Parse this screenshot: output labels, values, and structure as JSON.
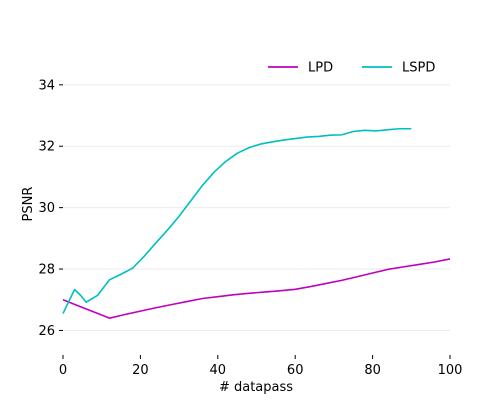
{
  "chart_data": {
    "type": "line",
    "title": "",
    "xlabel": "# datapass",
    "ylabel": "PSNR",
    "xlim": [
      0,
      100
    ],
    "ylim": [
      25.2,
      35.2
    ],
    "xticks": [
      0,
      20,
      40,
      60,
      80,
      100
    ],
    "yticks": [
      26,
      28,
      30,
      32,
      34
    ],
    "grid": "horizontal",
    "legend_position": "top-right",
    "series": [
      {
        "name": "LPD",
        "color": "#bf00bf",
        "points": [
          [
            0,
            27.0
          ],
          [
            3,
            26.85
          ],
          [
            6,
            26.7
          ],
          [
            9,
            26.55
          ],
          [
            12,
            26.4
          ],
          [
            16,
            26.52
          ],
          [
            20,
            26.63
          ],
          [
            24,
            26.74
          ],
          [
            28,
            26.84
          ],
          [
            32,
            26.94
          ],
          [
            36,
            27.04
          ],
          [
            40,
            27.1
          ],
          [
            44,
            27.16
          ],
          [
            48,
            27.21
          ],
          [
            52,
            27.25
          ],
          [
            56,
            27.29
          ],
          [
            60,
            27.34
          ],
          [
            64,
            27.43
          ],
          [
            68,
            27.53
          ],
          [
            72,
            27.63
          ],
          [
            76,
            27.75
          ],
          [
            80,
            27.87
          ],
          [
            84,
            27.99
          ],
          [
            88,
            28.07
          ],
          [
            92,
            28.15
          ],
          [
            96,
            28.23
          ],
          [
            100,
            28.33
          ]
        ]
      },
      {
        "name": "LSPD",
        "color": "#00bfbf",
        "points": [
          [
            0,
            26.55
          ],
          [
            1.5,
            26.95
          ],
          [
            3,
            27.33
          ],
          [
            4.5,
            27.15
          ],
          [
            6,
            26.92
          ],
          [
            9,
            27.15
          ],
          [
            12,
            27.65
          ],
          [
            15,
            27.83
          ],
          [
            18,
            28.03
          ],
          [
            21,
            28.42
          ],
          [
            24,
            28.85
          ],
          [
            27,
            29.27
          ],
          [
            30,
            29.72
          ],
          [
            33,
            30.22
          ],
          [
            36,
            30.72
          ],
          [
            39,
            31.15
          ],
          [
            42,
            31.5
          ],
          [
            45,
            31.77
          ],
          [
            48,
            31.95
          ],
          [
            51,
            32.07
          ],
          [
            54,
            32.14
          ],
          [
            57,
            32.2
          ],
          [
            60,
            32.25
          ],
          [
            63,
            32.3
          ],
          [
            66,
            32.32
          ],
          [
            69,
            32.36
          ],
          [
            72,
            32.37
          ],
          [
            75,
            32.48
          ],
          [
            78,
            32.52
          ],
          [
            81,
            32.5
          ],
          [
            84,
            32.54
          ],
          [
            87,
            32.57
          ],
          [
            90,
            32.57
          ]
        ]
      }
    ]
  }
}
